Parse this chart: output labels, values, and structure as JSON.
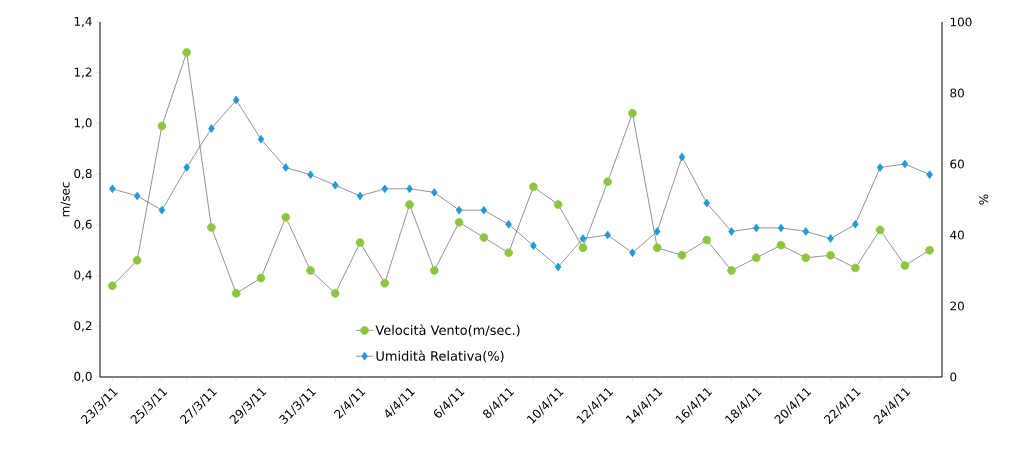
{
  "chart_data": {
    "type": "line",
    "categories": [
      "23/3/11",
      null,
      "25/3/11",
      null,
      "27/3/11",
      null,
      "29/3/11",
      null,
      "31/3/11",
      null,
      "2/4/11",
      null,
      "4/4/11",
      null,
      "6/4/11",
      null,
      "8/4/11",
      null,
      "10/4/11",
      null,
      "12/4/11",
      null,
      "14/4/11",
      null,
      "16/4/11",
      null,
      "18/4/11",
      null,
      "20/4/11",
      null,
      "22/4/11",
      null,
      "24/4/11",
      null
    ],
    "series": [
      {
        "name": "Velocità Vento(m/sec.)",
        "color": "#8cc63e",
        "marker": "circle",
        "values": [
          0.36,
          0.46,
          0.99,
          1.28,
          0.59,
          0.33,
          0.39,
          0.63,
          0.42,
          0.33,
          0.53,
          0.37,
          0.68,
          0.42,
          0.61,
          0.55,
          0.49,
          0.75,
          0.68,
          0.51,
          0.77,
          1.04,
          0.51,
          0.48,
          0.54,
          0.42,
          0.47,
          0.52,
          0.47,
          0.48,
          0.43,
          0.58,
          0.44,
          0.5
        ]
      },
      {
        "name": "Umidità Relativa(%)",
        "color": "#1e9ad6",
        "marker": "diamond",
        "axis": "y2",
        "values": [
          53,
          51,
          47,
          59,
          70,
          78,
          67,
          59,
          57,
          54,
          51,
          53,
          53,
          52,
          47,
          47,
          43,
          37,
          31,
          39,
          40,
          35,
          41,
          62,
          49,
          41,
          42,
          42,
          41,
          39,
          43,
          59,
          60,
          57
        ]
      }
    ],
    "ylabel": "m/sec",
    "y2label": "%",
    "ylim": [
      0,
      1.4
    ],
    "yticks": [
      {
        "value": 0,
        "label": "0,0"
      },
      {
        "value": 0.2,
        "label": "0,2"
      },
      {
        "value": 0.4,
        "label": "0,4"
      },
      {
        "value": 0.6,
        "label": "0,6"
      },
      {
        "value": 0.8,
        "label": "0,8"
      },
      {
        "value": 1.0,
        "label": "1,0"
      },
      {
        "value": 1.2,
        "label": "1,2"
      },
      {
        "value": 1.4,
        "label": "1,4"
      }
    ],
    "y2lim": [
      0,
      100
    ],
    "y2ticks": [
      0,
      20,
      40,
      60,
      80,
      100
    ],
    "legend": "bottom",
    "grid": false
  }
}
